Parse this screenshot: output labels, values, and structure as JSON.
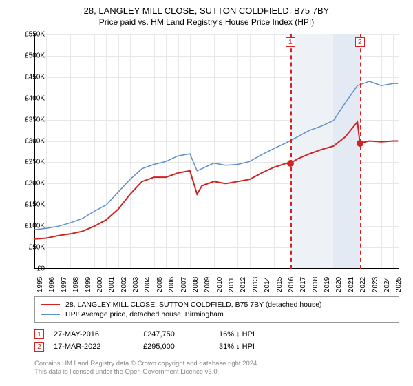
{
  "title": "28, LANGLEY MILL CLOSE, SUTTON COLDFIELD, B75 7BY",
  "subtitle": "Price paid vs. HM Land Registry's House Price Index (HPI)",
  "chart": {
    "type": "line",
    "background_color": "#ffffff",
    "grid_color": "#e8e8e8",
    "axis_color": "#000000",
    "label_fontsize": 10,
    "xlim": [
      1995,
      2025.5
    ],
    "ylim": [
      0,
      550000
    ],
    "ytick_step": 50000,
    "ytick_labels": [
      "£0",
      "£50K",
      "£100K",
      "£150K",
      "£200K",
      "£250K",
      "£300K",
      "£350K",
      "£400K",
      "£450K",
      "£500K",
      "£550K"
    ],
    "xtick_step": 1,
    "xtick_labels": [
      "1995",
      "1996",
      "1997",
      "1998",
      "1999",
      "2000",
      "2001",
      "2002",
      "2003",
      "2004",
      "2005",
      "2006",
      "2007",
      "2008",
      "2009",
      "2010",
      "2011",
      "2012",
      "2013",
      "2014",
      "2015",
      "2016",
      "2017",
      "2018",
      "2019",
      "2020",
      "2021",
      "2022",
      "2023",
      "2024",
      "2025"
    ],
    "shaded_regions": [
      {
        "from": 2016.4,
        "to": 2020.0,
        "color": "#eef2f7"
      },
      {
        "from": 2020.0,
        "to": 2022.21,
        "color": "#e3eaf3"
      }
    ],
    "series": [
      {
        "name": "price_paid",
        "label": "28, LANGLEY MILL CLOSE, SUTTON COLDFIELD, B75 7BY (detached house)",
        "color": "#d22222",
        "line_width": 2,
        "data": [
          [
            1995,
            70000
          ],
          [
            1996,
            72000
          ],
          [
            1997,
            78000
          ],
          [
            1998,
            82000
          ],
          [
            1999,
            88000
          ],
          [
            2000,
            100000
          ],
          [
            2001,
            115000
          ],
          [
            2002,
            140000
          ],
          [
            2003,
            175000
          ],
          [
            2004,
            205000
          ],
          [
            2005,
            215000
          ],
          [
            2006,
            215000
          ],
          [
            2007,
            225000
          ],
          [
            2008,
            230000
          ],
          [
            2008.6,
            175000
          ],
          [
            2009,
            195000
          ],
          [
            2010,
            205000
          ],
          [
            2011,
            200000
          ],
          [
            2012,
            205000
          ],
          [
            2013,
            210000
          ],
          [
            2014,
            225000
          ],
          [
            2015,
            238000
          ],
          [
            2016,
            247000
          ],
          [
            2016.4,
            247750
          ],
          [
            2017,
            258000
          ],
          [
            2018,
            270000
          ],
          [
            2019,
            280000
          ],
          [
            2020,
            288000
          ],
          [
            2021,
            310000
          ],
          [
            2022,
            345000
          ],
          [
            2022.21,
            295000
          ],
          [
            2023,
            300000
          ],
          [
            2024,
            298000
          ],
          [
            2025,
            300000
          ],
          [
            2025.4,
            300000
          ]
        ]
      },
      {
        "name": "hpi",
        "label": "HPI: Average price, detached house, Birmingham",
        "color": "#5b8fcf",
        "line_width": 1.5,
        "data": [
          [
            1995,
            92000
          ],
          [
            1996,
            95000
          ],
          [
            1997,
            100000
          ],
          [
            1998,
            108000
          ],
          [
            1999,
            118000
          ],
          [
            2000,
            135000
          ],
          [
            2001,
            150000
          ],
          [
            2002,
            180000
          ],
          [
            2003,
            210000
          ],
          [
            2004,
            235000
          ],
          [
            2005,
            245000
          ],
          [
            2006,
            252000
          ],
          [
            2007,
            265000
          ],
          [
            2008,
            270000
          ],
          [
            2008.6,
            230000
          ],
          [
            2009,
            235000
          ],
          [
            2010,
            248000
          ],
          [
            2011,
            243000
          ],
          [
            2012,
            245000
          ],
          [
            2013,
            252000
          ],
          [
            2014,
            268000
          ],
          [
            2015,
            282000
          ],
          [
            2016,
            295000
          ],
          [
            2017,
            310000
          ],
          [
            2018,
            325000
          ],
          [
            2019,
            335000
          ],
          [
            2020,
            348000
          ],
          [
            2021,
            390000
          ],
          [
            2022,
            430000
          ],
          [
            2023,
            440000
          ],
          [
            2024,
            430000
          ],
          [
            2025,
            435000
          ],
          [
            2025.4,
            435000
          ]
        ]
      }
    ],
    "markers": [
      {
        "id": "1",
        "x": 2016.4,
        "y": 247750,
        "line_color": "#d22222",
        "dot_color": "#d22222"
      },
      {
        "id": "2",
        "x": 2022.21,
        "y": 295000,
        "line_color": "#d22222",
        "dot_color": "#d22222"
      }
    ]
  },
  "sales": [
    {
      "id": "1",
      "date": "27-MAY-2016",
      "price": "£247,750",
      "hpi": "16% ↓ HPI",
      "color": "#d22222"
    },
    {
      "id": "2",
      "date": "17-MAR-2022",
      "price": "£295,000",
      "hpi": "31% ↓ HPI",
      "color": "#d22222"
    }
  ],
  "footer_line1": "Contains HM Land Registry data © Crown copyright and database right 2024.",
  "footer_line2": "This data is licensed under the Open Government Licence v3.0."
}
